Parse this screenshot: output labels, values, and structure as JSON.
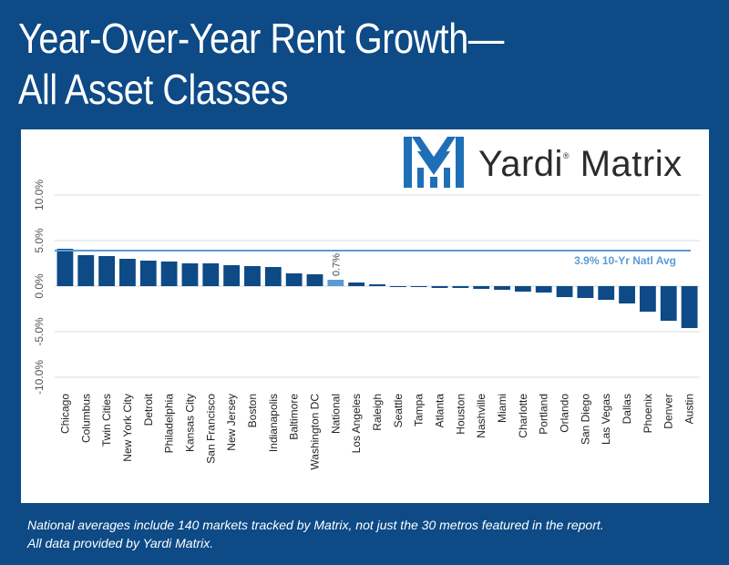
{
  "title_line1": "Year-Over-Year Rent Growth—",
  "title_line2": "All Asset Classes",
  "logo": {
    "brand": "Yardi",
    "product": "Matrix",
    "registered": "®",
    "icon": "yardi-matrix-m-icon"
  },
  "footer_line1": "National averages include 140 markets tracked by Matrix, not just the 30 metros featured in the report.",
  "footer_line2": "All data provided by Yardi Matrix.",
  "colors": {
    "background": "#0d4a86",
    "bar": "#0d4a86",
    "highlight_bar": "#5b9bd5",
    "reference_line": "#5b9bd5",
    "grid": "#d9d9d9",
    "logo_blue": "#1f6fb6"
  },
  "chart_data": {
    "type": "bar",
    "categories": [
      "Chicago",
      "Columbus",
      "Twin Cities",
      "New York City",
      "Detroit",
      "Philadelphia",
      "Kansas City",
      "San Francisco",
      "New Jersey",
      "Boston",
      "Indianapolis",
      "Baltimore",
      "Washington DC",
      "National",
      "Los Angeles",
      "Raleigh",
      "Seattle",
      "Tampa",
      "Atlanta",
      "Houston",
      "Nashville",
      "Miami",
      "Charlotte",
      "Portland",
      "Orlando",
      "San Diego",
      "Las Vegas",
      "Dallas",
      "Phoenix",
      "Denver",
      "Austin"
    ],
    "values": [
      4.1,
      3.4,
      3.3,
      3.0,
      2.8,
      2.7,
      2.5,
      2.5,
      2.3,
      2.2,
      2.1,
      1.4,
      1.3,
      0.7,
      0.4,
      0.2,
      -0.1,
      -0.1,
      -0.2,
      -0.2,
      -0.3,
      -0.4,
      -0.6,
      -0.7,
      -1.2,
      -1.3,
      -1.5,
      -1.9,
      -2.8,
      -3.8,
      -4.6
    ],
    "highlight": "National",
    "data_labels": [
      {
        "category": "National",
        "text": "0.7%"
      }
    ],
    "reference_line": {
      "value": 3.9,
      "label": "3.9% 10-Yr Natl Avg"
    },
    "yticks": [
      "10.0%",
      "5.0%",
      "0.0%",
      "-5.0%",
      "-10.0%"
    ],
    "ytick_values": [
      10,
      5,
      0,
      -5,
      -10
    ],
    "ylim": [
      -10,
      10
    ],
    "grid": true,
    "xlabel": "",
    "ylabel": ""
  }
}
